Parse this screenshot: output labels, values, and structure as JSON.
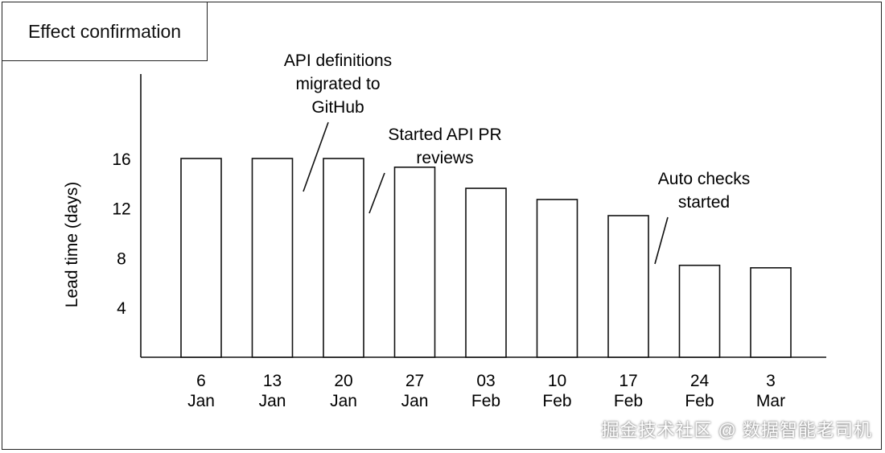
{
  "title": "Effect confirmation",
  "watermark": "掘金技术社区 @ 数据智能老司机",
  "chart_data": {
    "type": "bar",
    "ylabel": "Lead time (days)",
    "xlabel": "",
    "ylim": [
      0,
      22.8
    ],
    "yticks": [
      4,
      8,
      12,
      16
    ],
    "categories": [
      [
        "6",
        "Jan"
      ],
      [
        "13",
        "Jan"
      ],
      [
        "20",
        "Jan"
      ],
      [
        "27",
        "Jan"
      ],
      [
        "03",
        "Feb"
      ],
      [
        "10",
        "Feb"
      ],
      [
        "17",
        "Feb"
      ],
      [
        "24",
        "Feb"
      ],
      [
        "3",
        "Mar"
      ]
    ],
    "values": [
      16,
      16,
      16,
      15.3,
      13.6,
      12.7,
      11.4,
      7.4,
      7.2
    ],
    "grid": false,
    "annotations": [
      {
        "lines": [
          "API definitions",
          "migrated to",
          "GitHub"
        ],
        "between": [
          1,
          2
        ]
      },
      {
        "lines": [
          "Started API PR",
          "reviews"
        ],
        "between": [
          2,
          3
        ]
      },
      {
        "lines": [
          "Auto checks",
          "started"
        ],
        "between": [
          6,
          7
        ]
      }
    ]
  }
}
